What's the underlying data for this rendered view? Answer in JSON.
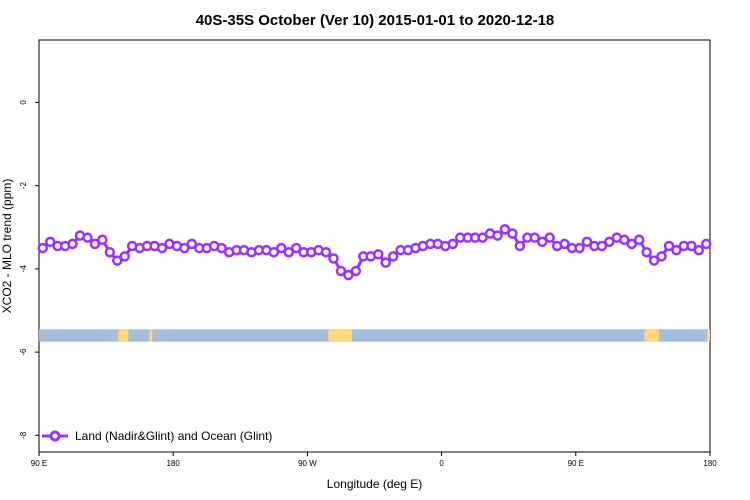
{
  "chart_data": {
    "type": "line",
    "title": "40S-35S October (Ver 10)   2015-01-01 to 2020-12-18",
    "xlabel": "Longitude (deg E)",
    "ylabel": "XCO2 - MLO trend (ppm)",
    "x_ticks": [
      {
        "value": 90,
        "label": "90 E"
      },
      {
        "value": 180,
        "label": "180"
      },
      {
        "value": 270,
        "label": "90 W"
      },
      {
        "value": 360,
        "label": "0"
      },
      {
        "value": 450,
        "label": "90 E"
      },
      {
        "value": 540,
        "label": "180"
      }
    ],
    "y_ticks": [
      {
        "value": 0,
        "label": "0"
      },
      {
        "value": -2,
        "label": "-2"
      },
      {
        "value": -4,
        "label": "-4"
      },
      {
        "value": -6,
        "label": "-6"
      },
      {
        "value": -8,
        "label": "-8"
      }
    ],
    "xlim": [
      90,
      540
    ],
    "ylim": [
      -8.4,
      1.5
    ],
    "grid": false,
    "legend_position": "bottom-left",
    "series": [
      {
        "name": "Land (Nadir&Glint) and Ocean (Glint)",
        "color": "#9b30ff",
        "x": [
          92.5,
          97.5,
          102.5,
          107.5,
          112.5,
          117.5,
          122.5,
          127.5,
          132.5,
          137.5,
          142.5,
          147.5,
          152.5,
          157.5,
          162.5,
          167.5,
          172.5,
          177.5,
          182.5,
          187.5,
          192.5,
          197.5,
          202.5,
          207.5,
          212.5,
          217.5,
          222.5,
          227.5,
          232.5,
          237.5,
          242.5,
          247.5,
          252.5,
          257.5,
          262.5,
          267.5,
          272.5,
          277.5,
          282.5,
          287.5,
          292.5,
          297.5,
          302.5,
          307.5,
          312.5,
          317.5,
          322.5,
          327.5,
          332.5,
          337.5,
          342.5,
          347.5,
          352.5,
          357.5,
          362.5,
          367.5,
          372.5,
          377.5,
          382.5,
          387.5,
          392.5,
          397.5,
          402.5,
          407.5,
          412.5,
          417.5,
          422.5,
          427.5,
          432.5,
          437.5,
          442.5,
          447.5,
          452.5,
          457.5,
          462.5,
          467.5,
          472.5,
          477.5,
          482.5,
          487.5,
          492.5,
          497.5,
          502.5,
          507.5,
          512.5,
          517.5,
          522.5,
          527.5,
          532.5,
          537.5
        ],
        "y": [
          -3.5,
          -3.35,
          -3.45,
          -3.45,
          -3.4,
          -3.2,
          -3.25,
          -3.4,
          -3.3,
          -3.6,
          -3.8,
          -3.7,
          -3.45,
          -3.5,
          -3.45,
          -3.45,
          -3.5,
          -3.4,
          -3.45,
          -3.5,
          -3.4,
          -3.5,
          -3.5,
          -3.45,
          -3.5,
          -3.6,
          -3.55,
          -3.55,
          -3.6,
          -3.55,
          -3.55,
          -3.6,
          -3.5,
          -3.6,
          -3.5,
          -3.6,
          -3.6,
          -3.55,
          -3.6,
          -3.75,
          -4.05,
          -4.15,
          -4.05,
          -3.7,
          -3.7,
          -3.65,
          -3.85,
          -3.7,
          -3.55,
          -3.55,
          -3.5,
          -3.45,
          -3.4,
          -3.4,
          -3.45,
          -3.4,
          -3.25,
          -3.25,
          -3.25,
          -3.25,
          -3.15,
          -3.2,
          -3.05,
          -3.15,
          -3.45,
          -3.25,
          -3.25,
          -3.35,
          -3.25,
          -3.45,
          -3.4,
          -3.5,
          -3.5,
          -3.35,
          -3.45,
          -3.45,
          -3.35,
          -3.25,
          -3.3,
          -3.4,
          -3.3,
          -3.6,
          -3.8,
          -3.7,
          -3.45,
          -3.55,
          -3.45,
          -3.45,
          -3.55,
          -3.4
        ]
      }
    ],
    "land_strip": {
      "y_range": [
        -5.45,
        -5.75
      ],
      "ocean_color": "#a6bddb",
      "land_color": "#ffd97a",
      "land_segments": [
        [
          143,
          150
        ],
        [
          164,
          166
        ],
        [
          284,
          300
        ],
        [
          496,
          506
        ],
        [
          538,
          540
        ]
      ]
    }
  }
}
